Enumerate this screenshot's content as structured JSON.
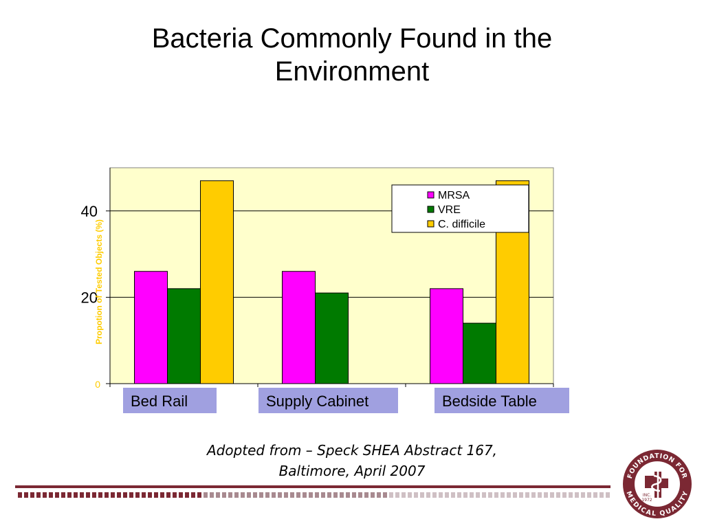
{
  "slide": {
    "title_line1": "Bacteria Commonly Found in the",
    "title_line2": "Environment",
    "citation_line1": "Adopted from – Speck SHEA Abstract 167,",
    "citation_line2": "Baltimore, April 2007"
  },
  "logo": {
    "text_top": "FOUNDATION FOR",
    "text_bottom": "MEDICAL QUALITY",
    "inc": "INC.",
    "year": "1972",
    "color": "#7b2833"
  },
  "chart_data": {
    "type": "bar",
    "title": "",
    "categories": [
      "Bed Rail",
      "Supply Cabinet",
      "Bedside Table"
    ],
    "series": [
      {
        "name": "MRSA",
        "color": "#ff00ff",
        "values": [
          26,
          26,
          22
        ]
      },
      {
        "name": "VRE",
        "color": "#007a00",
        "values": [
          22,
          21,
          14
        ]
      },
      {
        "name": "C. difficile",
        "color": "#ffcc00",
        "values": [
          47,
          null,
          47
        ]
      }
    ],
    "ylabel": "Propotion of Tested Objects  (%)",
    "ylim": [
      0,
      50
    ],
    "yticks": [
      {
        "value": 0,
        "label": "0"
      },
      {
        "value": 20,
        "label": "20"
      },
      {
        "value": 40,
        "label": "40"
      }
    ],
    "grid": true,
    "legend_position": "top-right",
    "plot_background": "#ffffcc",
    "category_box_color": "#a0a0e0"
  }
}
